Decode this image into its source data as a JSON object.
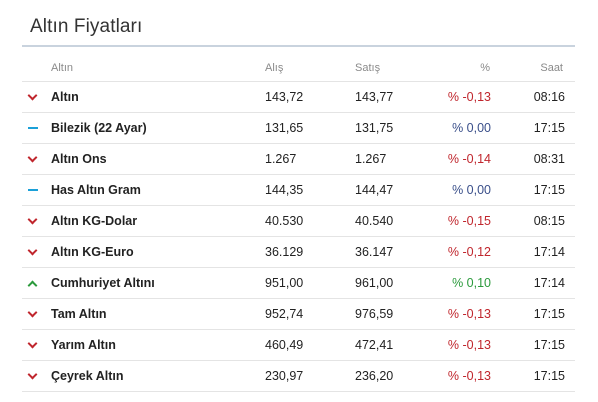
{
  "title": "Altın Fiyatları",
  "columns": {
    "name": "Altın",
    "buy": "Alış",
    "sell": "Satış",
    "pct": "%",
    "time": "Saat"
  },
  "colors": {
    "down": "#c0262d",
    "up": "#2b9a3c",
    "flat": "#1ba0d8"
  },
  "rows": [
    {
      "trend": "down",
      "name": "Altın",
      "buy": "143,72",
      "sell": "143,77",
      "pct": "% -0,13",
      "time": "08:16"
    },
    {
      "trend": "flat",
      "name": "Bilezik (22 Ayar)",
      "buy": "131,65",
      "sell": "131,75",
      "pct": "% 0,00",
      "time": "17:15"
    },
    {
      "trend": "down",
      "name": "Altın Ons",
      "buy": "1.267",
      "sell": "1.267",
      "pct": "% -0,14",
      "time": "08:31"
    },
    {
      "trend": "flat",
      "name": "Has Altın Gram",
      "buy": "144,35",
      "sell": "144,47",
      "pct": "% 0,00",
      "time": "17:15"
    },
    {
      "trend": "down",
      "name": "Altın KG-Dolar",
      "buy": "40.530",
      "sell": "40.540",
      "pct": "% -0,15",
      "time": "08:15"
    },
    {
      "trend": "down",
      "name": "Altın KG-Euro",
      "buy": "36.129",
      "sell": "36.147",
      "pct": "% -0,12",
      "time": "17:14"
    },
    {
      "trend": "up",
      "name": "Cumhuriyet Altını",
      "buy": "951,00",
      "sell": "961,00",
      "pct": "% 0,10",
      "time": "17:14"
    },
    {
      "trend": "down",
      "name": "Tam Altın",
      "buy": "952,74",
      "sell": "976,59",
      "pct": "% -0,13",
      "time": "17:15"
    },
    {
      "trend": "down",
      "name": "Yarım Altın",
      "buy": "460,49",
      "sell": "472,41",
      "pct": "% -0,13",
      "time": "17:15"
    },
    {
      "trend": "down",
      "name": "Çeyrek Altın",
      "buy": "230,97",
      "sell": "236,20",
      "pct": "% -0,13",
      "time": "17:15"
    }
  ]
}
